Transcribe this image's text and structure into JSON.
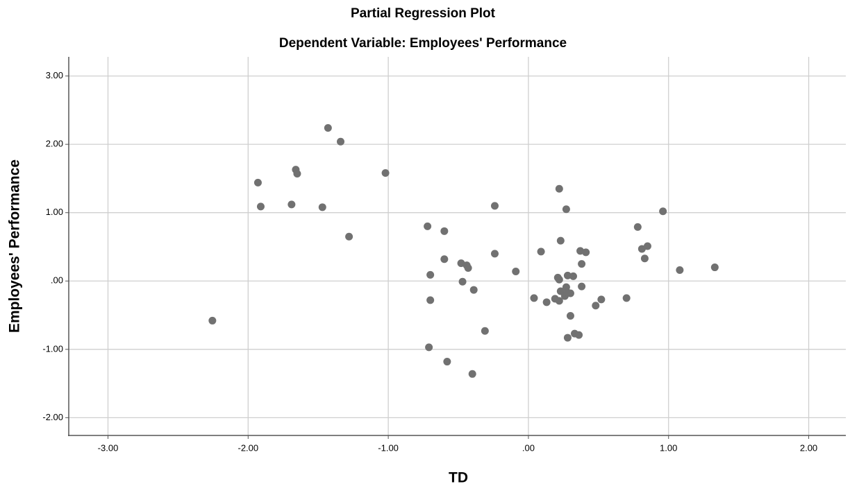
{
  "chart_data": {
    "type": "scatter",
    "title": "Partial Regression Plot",
    "subtitle": "Dependent Variable: Employees' Performance",
    "x_label": "TD",
    "y_label": "Employees' Performance",
    "color": "#717171",
    "grid": true,
    "xlim": [
      -3.28,
      2.265
    ],
    "ylim": [
      -2.26,
      3.28
    ],
    "xticks": [
      {
        "value": -3,
        "label": "-3.00"
      },
      {
        "value": -2,
        "label": "-2.00"
      },
      {
        "value": -1,
        "label": "-1.00"
      },
      {
        "value": 0,
        "label": ".00"
      },
      {
        "value": 1,
        "label": "1.00"
      },
      {
        "value": 2,
        "label": "2.00"
      }
    ],
    "yticks": [
      {
        "value": -2,
        "label": "-2.00"
      },
      {
        "value": -1,
        "label": "-1.00"
      },
      {
        "value": 0,
        "label": ".00"
      },
      {
        "value": 1,
        "label": "1.00"
      },
      {
        "value": 2,
        "label": "2.00"
      },
      {
        "value": 3,
        "label": "3.00"
      }
    ],
    "x": [
      -2.255,
      -1.93,
      -1.91,
      -1.69,
      -1.66,
      -1.65,
      -1.47,
      -1.43,
      -1.34,
      -1.28,
      -1.02,
      -0.72,
      -0.7,
      -0.7,
      -0.71,
      -0.6,
      -0.6,
      -0.58,
      -0.48,
      -0.47,
      -0.44,
      -0.43,
      -0.39,
      -0.4,
      -0.31,
      -0.24,
      -0.24,
      -0.09,
      0.04,
      0.09,
      0.13,
      0.19,
      0.21,
      0.22,
      0.22,
      0.22,
      0.23,
      0.23,
      0.26,
      0.27,
      0.27,
      0.28,
      0.28,
      0.28,
      0.3,
      0.32,
      0.33,
      0.36,
      0.37,
      0.38,
      0.38,
      0.41,
      0.48,
      0.52,
      0.7,
      0.78,
      0.81,
      0.83,
      0.85,
      0.96,
      1.08,
      1.33,
      0.3
    ],
    "y": [
      -0.58,
      1.44,
      1.09,
      1.12,
      1.63,
      1.57,
      1.08,
      2.24,
      2.04,
      0.65,
      1.58,
      0.8,
      0.09,
      -0.28,
      -0.97,
      0.73,
      0.32,
      -1.18,
      0.26,
      -0.01,
      0.23,
      0.19,
      -0.13,
      -1.36,
      -0.73,
      0.4,
      1.1,
      0.14,
      -0.25,
      0.43,
      -0.31,
      -0.26,
      0.05,
      1.35,
      0.02,
      -0.29,
      -0.15,
      0.59,
      -0.22,
      -0.09,
      1.05,
      0.08,
      -0.83,
      -0.17,
      -0.51,
      0.07,
      -0.77,
      -0.79,
      0.44,
      0.25,
      -0.08,
      0.42,
      -0.36,
      -0.27,
      -0.25,
      0.79,
      0.47,
      0.33,
      0.51,
      1.02,
      0.16,
      0.2,
      -0.18
    ]
  }
}
